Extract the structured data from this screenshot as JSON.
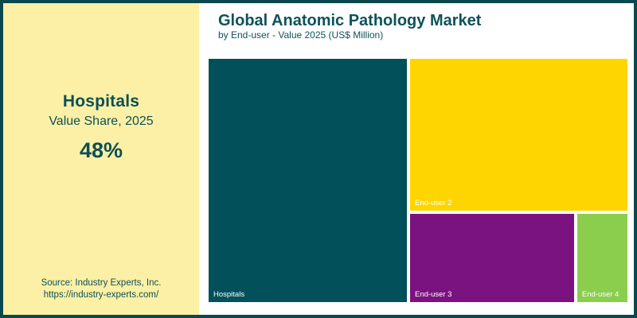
{
  "header": {
    "title": "Global Anatomic Pathology Market",
    "subtitle": "by End-user - Value 2025 (US$ Million)"
  },
  "panel": {
    "category": "Hospitals",
    "caption": "Value Share, 2025",
    "value": "48%",
    "source_line1": "Source: Industry Experts, Inc.",
    "source_line2": "https://industry-experts.com/",
    "background_color": "#FCF0A6",
    "text_color": "#0C4F57"
  },
  "frame": {
    "border_color": "#0A4850",
    "background_color": "#FFFFFF"
  },
  "chart_data": {
    "type": "treemap",
    "title": "Global Anatomic Pathology Market",
    "subtitle": "by End-user - Value 2025 (US$ Million)",
    "unit": "US$ Million",
    "year": "2025",
    "highlight": {
      "category": "Hospitals",
      "value_share_pct": 48
    },
    "categories": [
      "Hospitals",
      "End-user 2",
      "End-user 3",
      "End-user 4"
    ],
    "values": [
      48,
      33,
      14,
      5
    ],
    "values_note": "Hospitals 48% is printed on the image; other shares estimated from cell areas",
    "legend": "none",
    "cells": [
      {
        "label": "Hospitals",
        "share_pct": 48,
        "color": "#02505A",
        "x_pct": 0,
        "y_pct": 0,
        "w_pct": 47.3,
        "h_pct": 100
      },
      {
        "label": "End-user 2",
        "share_pct": 33,
        "color": "#FFD500",
        "x_pct": 48.1,
        "y_pct": 0,
        "w_pct": 51.9,
        "h_pct": 62.4
      },
      {
        "label": "End-user 3",
        "share_pct": 14,
        "color": "#7A1380",
        "x_pct": 48.1,
        "y_pct": 63.7,
        "w_pct": 39.2,
        "h_pct": 36.3
      },
      {
        "label": "End-user 4",
        "share_pct": 5,
        "color": "#8BCE4E",
        "x_pct": 88.0,
        "y_pct": 63.7,
        "w_pct": 12.0,
        "h_pct": 36.3
      }
    ]
  }
}
